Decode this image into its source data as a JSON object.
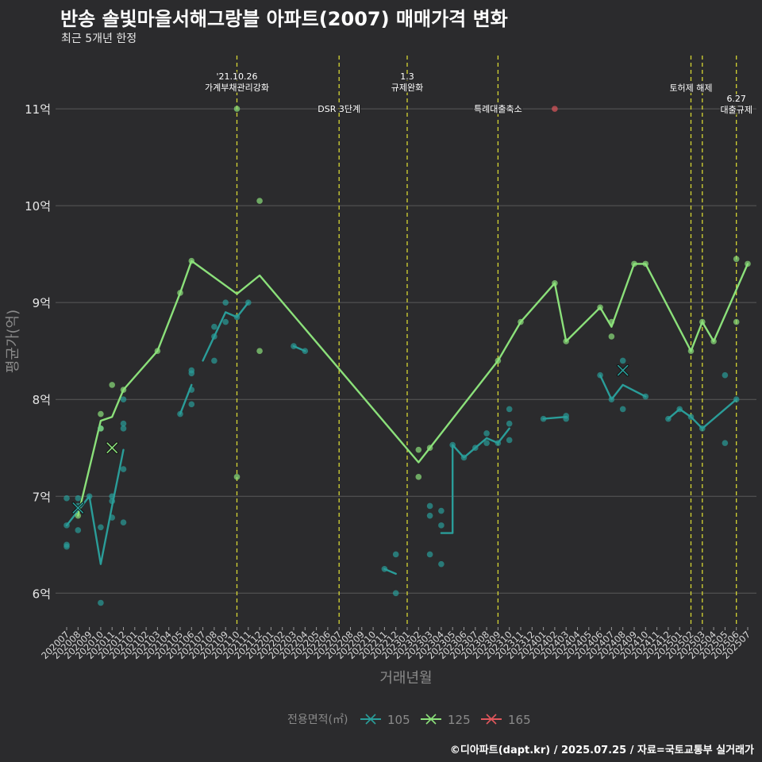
{
  "header": {
    "title": "반송 솔빛마을서해그랑블 아파트(2007) 매매가격 변화",
    "subtitle": "최근 5개년 한정"
  },
  "caption": "©디아파트(dapt.kr) / 2025.07.25 / 자료=국토교통부 실거래가",
  "colors": {
    "background": "#2b2b2d",
    "grid": "#5a5a5a",
    "policy_line": "#d6d633",
    "s105": "#2a9d99",
    "s125": "#8be07a",
    "s165": "#e0575c"
  },
  "chart_data": {
    "type": "line",
    "xlabel": "거래년월",
    "ylabel": "평균가(억)",
    "x_categories": [
      "202007",
      "202008",
      "202009",
      "202010",
      "202011",
      "202012",
      "202101",
      "202102",
      "202103",
      "202104",
      "202105",
      "202106",
      "202107",
      "202108",
      "202109",
      "202110",
      "202111",
      "202112",
      "202201",
      "202202",
      "202203",
      "202204",
      "202205",
      "202206",
      "202207",
      "202208",
      "202209",
      "202210",
      "202211",
      "202212",
      "202301",
      "202302",
      "202303",
      "202304",
      "202305",
      "202306",
      "202307",
      "202308",
      "202309",
      "202310",
      "202311",
      "202312",
      "202401",
      "202402",
      "202403",
      "202404",
      "202405",
      "202406",
      "202407",
      "202408",
      "202409",
      "202410",
      "202411",
      "202412",
      "202501",
      "202502",
      "202503",
      "202504",
      "202505",
      "202506",
      "202507"
    ],
    "y_ticks": [
      {
        "value": 6,
        "label": "6억"
      },
      {
        "value": 7,
        "label": "7억"
      },
      {
        "value": 8,
        "label": "8억"
      },
      {
        "value": 9,
        "label": "9억"
      },
      {
        "value": 10,
        "label": "10억"
      },
      {
        "value": 11,
        "label": "11억"
      }
    ],
    "ylim": [
      5.65,
      11.55
    ],
    "legend": {
      "title": "전용면적(㎡)",
      "position": "bottom"
    },
    "series": [
      {
        "name": "105",
        "color": "#2a9d99",
        "line": [
          [
            [
              "202007",
              6.7
            ],
            [
              "202008",
              6.85
            ],
            [
              "202009",
              7.0
            ],
            [
              "202010",
              6.3
            ],
            [
              "202011",
              6.9
            ],
            [
              "202012",
              7.48
            ]
          ],
          [
            [
              "202105",
              7.85
            ],
            [
              "202106",
              8.15
            ]
          ],
          [
            [
              "202107",
              8.4
            ],
            [
              "202108",
              8.65
            ],
            [
              "202109",
              8.9
            ],
            [
              "202110",
              8.85
            ],
            [
              "202111",
              9.0
            ]
          ],
          [
            [
              "202203",
              8.55
            ],
            [
              "202204",
              8.5
            ]
          ],
          [
            [
              "202211",
              6.25
            ],
            [
              "202212",
              6.2
            ]
          ],
          [
            [
              "202304",
              6.62
            ],
            [
              "202305",
              6.62
            ],
            [
              "202305",
              7.53
            ],
            [
              "202306",
              7.4
            ],
            [
              "202307",
              7.5
            ],
            [
              "202308",
              7.6
            ],
            [
              "202309",
              7.55
            ],
            [
              "202310",
              7.7
            ]
          ],
          [
            [
              "202401",
              7.8
            ],
            [
              "202403",
              7.82
            ]
          ],
          [
            [
              "202406",
              8.25
            ],
            [
              "202407",
              8.0
            ],
            [
              "202408",
              8.15
            ],
            [
              "202410",
              8.03
            ]
          ],
          [
            [
              "202412",
              7.8
            ],
            [
              "202501",
              7.9
            ],
            [
              "202502",
              7.82
            ],
            [
              "202503",
              7.7
            ],
            [
              "202506",
              8.0
            ]
          ]
        ],
        "points": [
          [
            "202007",
            6.98
          ],
          [
            "202007",
            6.7
          ],
          [
            "202007",
            6.5
          ],
          [
            "202007",
            6.48
          ],
          [
            "202008",
            6.65
          ],
          [
            "202008",
            6.9
          ],
          [
            "202008",
            6.98
          ],
          [
            "202009",
            7.0
          ],
          [
            "202010",
            5.9
          ],
          [
            "202010",
            6.68
          ],
          [
            "202010",
            7.7
          ],
          [
            "202011",
            6.78
          ],
          [
            "202011",
            6.95
          ],
          [
            "202011",
            7.0
          ],
          [
            "202012",
            6.73
          ],
          [
            "202012",
            7.28
          ],
          [
            "202012",
            7.7
          ],
          [
            "202012",
            7.75
          ],
          [
            "202012",
            8.0
          ],
          [
            "202105",
            7.85
          ],
          [
            "202106",
            7.95
          ],
          [
            "202106",
            8.1
          ],
          [
            "202106",
            8.27
          ],
          [
            "202106",
            8.3
          ],
          [
            "202108",
            8.4
          ],
          [
            "202108",
            8.65
          ],
          [
            "202108",
            8.75
          ],
          [
            "202109",
            8.8
          ],
          [
            "202109",
            9.0
          ],
          [
            "202110",
            8.85
          ],
          [
            "202111",
            9.0
          ],
          [
            "202203",
            8.55
          ],
          [
            "202204",
            8.5
          ],
          [
            "202211",
            6.25
          ],
          [
            "202212",
            6.4
          ],
          [
            "202212",
            6.0
          ],
          [
            "202303",
            6.9
          ],
          [
            "202303",
            6.8
          ],
          [
            "202303",
            6.4
          ],
          [
            "202304",
            6.85
          ],
          [
            "202304",
            6.7
          ],
          [
            "202304",
            6.3
          ],
          [
            "202305",
            7.53
          ],
          [
            "202306",
            7.4
          ],
          [
            "202307",
            7.5
          ],
          [
            "202308",
            7.55
          ],
          [
            "202308",
            7.65
          ],
          [
            "202309",
            7.55
          ],
          [
            "202310",
            7.58
          ],
          [
            "202310",
            7.75
          ],
          [
            "202310",
            7.9
          ],
          [
            "202401",
            7.8
          ],
          [
            "202403",
            7.8
          ],
          [
            "202403",
            7.83
          ],
          [
            "202406",
            8.25
          ],
          [
            "202407",
            8.0
          ],
          [
            "202408",
            7.9
          ],
          [
            "202408",
            8.4
          ],
          [
            "202410",
            8.03
          ],
          [
            "202412",
            7.8
          ],
          [
            "202501",
            7.9
          ],
          [
            "202502",
            7.82
          ],
          [
            "202503",
            7.7
          ],
          [
            "202505",
            7.55
          ],
          [
            "202505",
            8.25
          ],
          [
            "202506",
            8.0
          ]
        ],
        "mean_markers": [
          [
            "202008",
            6.88
          ],
          [
            "202408",
            8.3
          ]
        ]
      },
      {
        "name": "125",
        "color": "#8be07a",
        "line": [
          [
            [
              "202008",
              6.8
            ],
            [
              "202010",
              7.78
            ],
            [
              "202011",
              7.82
            ],
            [
              "202012",
              8.1
            ],
            [
              "202103",
              8.5
            ],
            [
              "202105",
              9.1
            ],
            [
              "202106",
              9.43
            ],
            [
              "202110",
              9.09
            ],
            [
              "202112",
              9.28
            ],
            [
              "202302",
              7.35
            ],
            [
              "202303",
              7.5
            ],
            [
              "202309",
              8.4
            ],
            [
              "202311",
              8.8
            ],
            [
              "202402",
              9.2
            ],
            [
              "202403",
              8.6
            ],
            [
              "202406",
              8.95
            ],
            [
              "202407",
              8.75
            ],
            [
              "202409",
              9.4
            ],
            [
              "202410",
              9.4
            ],
            [
              "202502",
              8.5
            ],
            [
              "202503",
              8.8
            ],
            [
              "202504",
              8.6
            ],
            [
              "202507",
              9.4
            ]
          ]
        ],
        "points": [
          [
            "202008",
            6.8
          ],
          [
            "202010",
            7.85
          ],
          [
            "202010",
            7.7
          ],
          [
            "202011",
            8.15
          ],
          [
            "202012",
            8.1
          ],
          [
            "202103",
            8.5
          ],
          [
            "202105",
            9.1
          ],
          [
            "202106",
            9.43
          ],
          [
            "202110",
            11.0
          ],
          [
            "202110",
            7.2
          ],
          [
            "202112",
            10.05
          ],
          [
            "202112",
            8.5
          ],
          [
            "202302",
            7.48
          ],
          [
            "202302",
            7.2
          ],
          [
            "202303",
            7.5
          ],
          [
            "202309",
            8.4
          ],
          [
            "202311",
            8.8
          ],
          [
            "202402",
            9.2
          ],
          [
            "202403",
            8.6
          ],
          [
            "202406",
            8.95
          ],
          [
            "202407",
            8.8
          ],
          [
            "202407",
            8.65
          ],
          [
            "202409",
            9.4
          ],
          [
            "202410",
            9.4
          ],
          [
            "202502",
            8.5
          ],
          [
            "202503",
            8.8
          ],
          [
            "202504",
            8.6
          ],
          [
            "202506",
            9.45
          ],
          [
            "202506",
            8.8
          ],
          [
            "202507",
            9.4
          ]
        ],
        "mean_markers": [
          [
            "202011",
            7.5
          ]
        ]
      },
      {
        "name": "165",
        "color": "#e0575c",
        "line": [],
        "points": [
          [
            "202402",
            11.0
          ]
        ],
        "mean_markers": []
      }
    ],
    "policy_events": [
      {
        "x": "202110",
        "label": "'21.10.26\n가계부채관리강화",
        "y_label": 11.28
      },
      {
        "x": "202207",
        "label": "DSR 3단계",
        "y_label": 11.0
      },
      {
        "x": "202301",
        "label": "1.3\n규제완화",
        "y_label": 11.28
      },
      {
        "x": "202309",
        "label": "특례대출축소",
        "y_label": 11.0
      },
      {
        "x": "202502",
        "label": "토허제 해제",
        "y_label": 11.22
      },
      {
        "x": "202503",
        "label": "",
        "y_label": 11.22
      },
      {
        "x": "202506",
        "label": "6.27\n대출규제",
        "y_label": 11.05
      }
    ]
  }
}
